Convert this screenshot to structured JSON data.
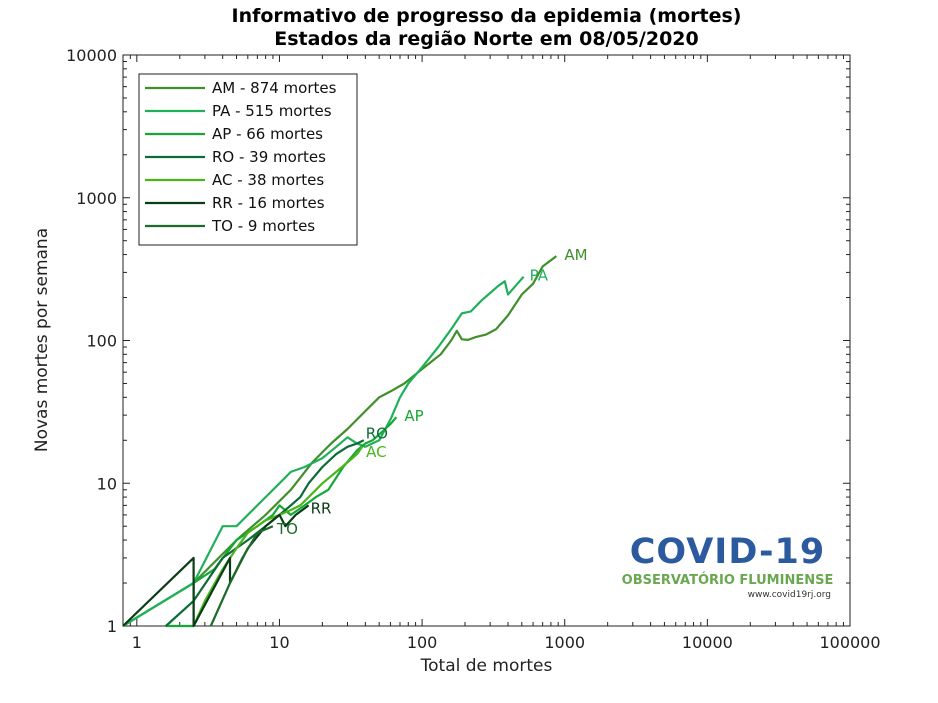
{
  "header": {
    "title_line1": "Informativo de progresso da epidemia (mortes)",
    "title_line2": "Estados da região Norte  em 08/05/2020"
  },
  "logo": {
    "main": "COVID-19",
    "sub": "OBSERVATÓRIO FLUMINENSE",
    "url": "www.covid19rj.org"
  },
  "chart_data": {
    "type": "line",
    "title": "Informativo de progresso da epidemia (mortes)\nEstados da região Norte  em 08/05/2020",
    "xlabel": "Total de mortes",
    "ylabel": "Novas mortes por semana",
    "xscale": "log",
    "yscale": "log",
    "xlim": [
      0.8,
      100000
    ],
    "ylim": [
      1,
      10000
    ],
    "xticks": [
      1,
      10,
      100,
      1000,
      10000,
      100000
    ],
    "xtick_labels": [
      "1",
      "10",
      "100",
      "1000",
      "10000",
      "100000"
    ],
    "yticks": [
      1,
      10,
      100,
      1000,
      10000
    ],
    "ytick_labels": [
      "1",
      "10",
      "100",
      "1000",
      "10000"
    ],
    "grid": false,
    "legend_position": "top-left",
    "series": [
      {
        "name": "AM - 874 mortes",
        "end_label": "AM",
        "color": "#3f8f2a",
        "points": [
          [
            0.8,
            1
          ],
          [
            2.5,
            2
          ],
          [
            5,
            4
          ],
          [
            8,
            6
          ],
          [
            12,
            9
          ],
          [
            17,
            14
          ],
          [
            23,
            19
          ],
          [
            30,
            24
          ],
          [
            40,
            32
          ],
          [
            50,
            40
          ],
          [
            60,
            44
          ],
          [
            75,
            50
          ],
          [
            90,
            58
          ],
          [
            110,
            68
          ],
          [
            135,
            80
          ],
          [
            160,
            100
          ],
          [
            175,
            117
          ],
          [
            190,
            102
          ],
          [
            210,
            101
          ],
          [
            240,
            106
          ],
          [
            280,
            110
          ],
          [
            330,
            120
          ],
          [
            400,
            150
          ],
          [
            500,
            210
          ],
          [
            600,
            250
          ],
          [
            700,
            330
          ],
          [
            874,
            390
          ]
        ]
      },
      {
        "name": "PA - 515 mortes",
        "end_label": "PA",
        "color": "#20b05a",
        "points": [
          [
            0.8,
            1
          ],
          [
            2.5,
            2
          ],
          [
            4,
            5
          ],
          [
            5,
            5
          ],
          [
            8,
            8
          ],
          [
            10,
            10
          ],
          [
            12,
            12
          ],
          [
            15,
            13
          ],
          [
            20,
            15
          ],
          [
            25,
            18
          ],
          [
            30,
            21
          ],
          [
            35,
            19
          ],
          [
            40,
            18
          ],
          [
            50,
            20
          ],
          [
            60,
            28
          ],
          [
            70,
            40
          ],
          [
            80,
            50
          ],
          [
            100,
            65
          ],
          [
            130,
            90
          ],
          [
            160,
            120
          ],
          [
            190,
            155
          ],
          [
            220,
            160
          ],
          [
            260,
            190
          ],
          [
            300,
            215
          ],
          [
            340,
            240
          ],
          [
            380,
            260
          ],
          [
            400,
            210
          ],
          [
            450,
            240
          ],
          [
            515,
            280
          ]
        ]
      },
      {
        "name": "AP - 66 mortes",
        "end_label": "AP",
        "color": "#16a834",
        "points": [
          [
            1.6,
            1
          ],
          [
            2.5,
            1
          ],
          [
            2.5,
            2
          ],
          [
            3.5,
            2.5
          ],
          [
            5,
            4
          ],
          [
            7,
            5
          ],
          [
            9,
            6
          ],
          [
            10,
            7
          ],
          [
            12,
            6
          ],
          [
            15,
            7
          ],
          [
            18,
            8
          ],
          [
            22,
            9
          ],
          [
            28,
            13
          ],
          [
            35,
            17
          ],
          [
            40,
            19
          ],
          [
            45,
            20
          ],
          [
            50,
            22
          ],
          [
            55,
            24
          ],
          [
            60,
            26
          ],
          [
            66,
            29
          ]
        ]
      },
      {
        "name": "RO - 39 mortes",
        "end_label": "RO",
        "color": "#0d6b37",
        "points": [
          [
            1.6,
            1
          ],
          [
            2.5,
            1.5
          ],
          [
            4,
            3
          ],
          [
            6,
            4
          ],
          [
            8,
            5
          ],
          [
            10,
            6
          ],
          [
            12,
            7
          ],
          [
            14,
            8
          ],
          [
            16,
            10
          ],
          [
            20,
            13
          ],
          [
            25,
            16
          ],
          [
            30,
            18
          ],
          [
            35,
            19
          ],
          [
            39,
            20
          ]
        ]
      },
      {
        "name": "AC - 38 mortes",
        "end_label": "AC",
        "color": "#49b41c",
        "points": [
          [
            2.5,
            1
          ],
          [
            3,
            1.5
          ],
          [
            4,
            2.5
          ],
          [
            5,
            3.5
          ],
          [
            6,
            4.5
          ],
          [
            8,
            5.5
          ],
          [
            10,
            6
          ],
          [
            12,
            6.5
          ],
          [
            14,
            7
          ],
          [
            16,
            8
          ],
          [
            20,
            10
          ],
          [
            25,
            12
          ],
          [
            30,
            14
          ],
          [
            35,
            16
          ],
          [
            38,
            18
          ]
        ]
      },
      {
        "name": "RR - 16 mortes",
        "end_label": "RR",
        "color": "#0a3d17",
        "points": [
          [
            0.8,
            1
          ],
          [
            2.5,
            3
          ],
          [
            2.5,
            1
          ],
          [
            4.5,
            3
          ],
          [
            4.5,
            2
          ],
          [
            6,
            3.5
          ],
          [
            8,
            5
          ],
          [
            10,
            6
          ],
          [
            11,
            5
          ],
          [
            13,
            6
          ],
          [
            16,
            7
          ]
        ]
      },
      {
        "name": "TO - 9 mortes",
        "end_label": "TO",
        "color": "#1c6b2c",
        "points": [
          [
            3.3,
            1
          ],
          [
            4.5,
            2
          ],
          [
            5.5,
            3
          ],
          [
            7,
            4.5
          ],
          [
            9,
            5
          ]
        ]
      }
    ]
  }
}
